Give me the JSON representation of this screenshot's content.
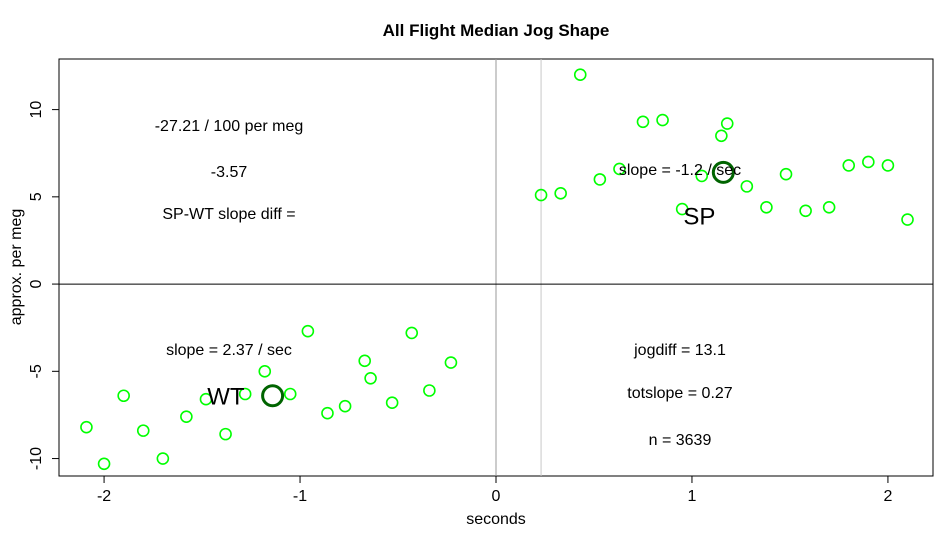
{
  "chart_data": {
    "type": "scatter",
    "title": "All Flight Median Jog Shape",
    "xlabel": "seconds",
    "ylabel": "approx. per meg",
    "xlim": [
      -2.23,
      2.23
    ],
    "ylim": [
      -11.0,
      12.9
    ],
    "xticks": [
      -2,
      -1,
      0,
      1,
      2
    ],
    "yticks": [
      -10,
      -5,
      0,
      5,
      10
    ],
    "xtick_labels": [
      "-2",
      "-1",
      "0",
      "1",
      "2"
    ],
    "ytick_labels": [
      "-10",
      "-5",
      "0",
      "5",
      "10"
    ],
    "reference_lines": {
      "vertical": [
        0,
        0.23
      ],
      "horizontal": [
        0
      ]
    },
    "grid": false,
    "point_color": "#00ff00",
    "center_color": "#006400",
    "series": [
      {
        "points": [
          [
            -2.09,
            -8.2
          ],
          [
            -2.0,
            -10.3
          ],
          [
            -1.9,
            -6.4
          ],
          [
            -1.8,
            -8.4
          ],
          [
            -1.7,
            -10.0
          ],
          [
            -1.58,
            -7.6
          ],
          [
            -1.48,
            -6.6
          ],
          [
            -1.38,
            -8.6
          ],
          [
            -1.28,
            -6.3
          ],
          [
            -1.18,
            -5.0
          ],
          [
            -1.05,
            -6.3
          ],
          [
            -0.96,
            -2.7
          ],
          [
            -0.86,
            -7.4
          ],
          [
            -0.77,
            -7.0
          ],
          [
            -0.67,
            -4.4
          ],
          [
            -0.64,
            -5.4
          ],
          [
            -0.53,
            -6.8
          ],
          [
            -0.43,
            -2.8
          ],
          [
            -0.34,
            -6.1
          ],
          [
            -0.23,
            -4.5
          ],
          [
            0.23,
            5.1
          ],
          [
            0.33,
            5.2
          ],
          [
            0.43,
            12.0
          ],
          [
            0.53,
            6.0
          ],
          [
            0.63,
            6.6
          ],
          [
            0.75,
            9.3
          ],
          [
            0.85,
            9.4
          ],
          [
            0.95,
            4.3
          ],
          [
            1.05,
            6.2
          ],
          [
            1.15,
            8.5
          ],
          [
            1.18,
            9.2
          ],
          [
            1.28,
            5.6
          ],
          [
            1.38,
            4.4
          ],
          [
            1.48,
            6.3
          ],
          [
            1.58,
            4.2
          ],
          [
            1.7,
            4.4
          ],
          [
            1.8,
            6.8
          ],
          [
            1.9,
            7.0
          ],
          [
            2.0,
            6.8
          ],
          [
            2.1,
            3.7
          ]
        ]
      }
    ],
    "centers": [
      {
        "label": "WT",
        "x": -1.14,
        "y": -6.4
      },
      {
        "label": "SP",
        "x": 1.16,
        "y": 6.4
      }
    ],
    "annotations": {
      "slope_diff_value": "-27.21 / 100 per meg",
      "slope_diff_raw": "-3.57",
      "slope_diff_label": "SP-WT slope diff =",
      "sp_slope": "slope = -1.2 / sec",
      "wt_slope": "slope = 2.37 / sec",
      "jogdiff": "jogdiff = 13.1",
      "totslope": "totslope = 0.27",
      "n": "n = 3639"
    }
  }
}
